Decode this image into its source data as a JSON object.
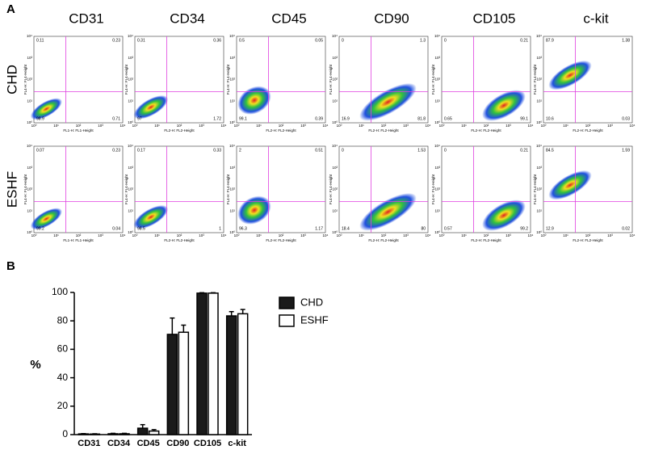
{
  "panel_a": {
    "label": "A",
    "columns": [
      "CD31",
      "CD34",
      "CD45",
      "CD90",
      "CD105",
      "c-kit"
    ],
    "rows": [
      "CHD",
      "ESHF"
    ],
    "y_axis_label": "FL4-H: FL4-Height",
    "x_axis_labels": [
      "FL1-H: FL1-Height",
      "FL2-H: FL2-Height",
      "FL2-H: FL2-Height",
      "FL2-H: FL2-Height",
      "FL2-H: FL2-Height",
      "FL2-H: FL2-Height"
    ],
    "axis_ticks": [
      "10⁰",
      "10¹",
      "10²",
      "10³",
      "10⁴"
    ],
    "quadrants": [
      [
        [
          0.11,
          0.23,
          98.9,
          0.71
        ],
        [
          0.31,
          0.36,
          97,
          1.72
        ],
        [
          0.5,
          0.05,
          99.1,
          0.39
        ],
        [
          0,
          1.3,
          16.9,
          81.8
        ],
        [
          0,
          0.21,
          0.65,
          99.1
        ],
        [
          87.9,
          1.38,
          10.6,
          0.03
        ]
      ],
      [
        [
          0.07,
          0.23,
          99.2,
          0.04
        ],
        [
          0.17,
          0.33,
          98.5,
          1
        ],
        [
          2,
          0.51,
          96.3,
          1.17
        ],
        [
          0,
          1.53,
          18.4,
          80
        ],
        [
          0,
          0.21,
          0.57,
          99.2
        ],
        [
          84.5,
          1.59,
          12.9,
          0.02
        ]
      ]
    ]
  },
  "panel_b_label": "B",
  "chart_data": {
    "type": "bar",
    "y_label": "%",
    "categories": [
      "CD31",
      "CD34",
      "CD45",
      "CD90",
      "CD105",
      "c-kit"
    ],
    "series": [
      {
        "name": "CHD",
        "color": "#1a1a1a",
        "values": [
          0.5,
          0.6,
          4.5,
          70.5,
          99.5,
          83.5
        ],
        "errors": [
          0.2,
          0.3,
          2.5,
          11.5,
          0.3,
          3
        ]
      },
      {
        "name": "ESHF",
        "color": "#ffffff",
        "values": [
          0.4,
          0.6,
          2.5,
          72,
          99.5,
          85
        ],
        "errors": [
          0.2,
          0.3,
          1,
          5,
          0.3,
          3
        ]
      }
    ],
    "ylim": [
      0,
      100
    ],
    "yticks": [
      0,
      20,
      40,
      60,
      80,
      100
    ]
  }
}
